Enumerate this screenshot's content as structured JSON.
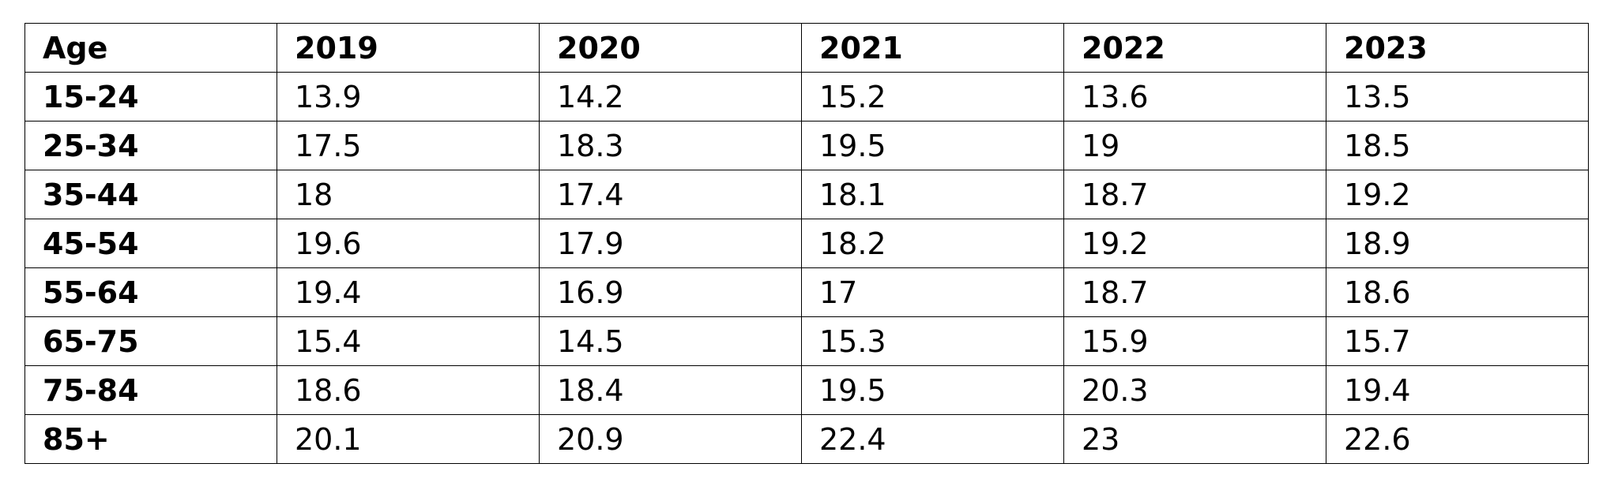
{
  "table": {
    "header": [
      "Age",
      "2019",
      "2020",
      "2021",
      "2022",
      "2023"
    ],
    "rows": [
      [
        "15-24",
        13.9,
        14.2,
        15.2,
        13.6,
        13.5
      ],
      [
        "25-34",
        17.5,
        18.3,
        19.5,
        19,
        18.5
      ],
      [
        "35-44",
        18,
        17.4,
        18.1,
        18.7,
        19.2
      ],
      [
        "45-54",
        19.6,
        17.9,
        18.2,
        19.2,
        18.9
      ],
      [
        "55-64",
        19.4,
        16.9,
        17,
        18.7,
        18.6
      ],
      [
        "65-75",
        15.4,
        14.5,
        15.3,
        15.9,
        15.7
      ],
      [
        "75-84",
        18.6,
        18.4,
        19.5,
        20.3,
        19.4
      ],
      [
        "85+",
        20.1,
        20.9,
        22.4,
        23,
        22.6
      ]
    ]
  }
}
